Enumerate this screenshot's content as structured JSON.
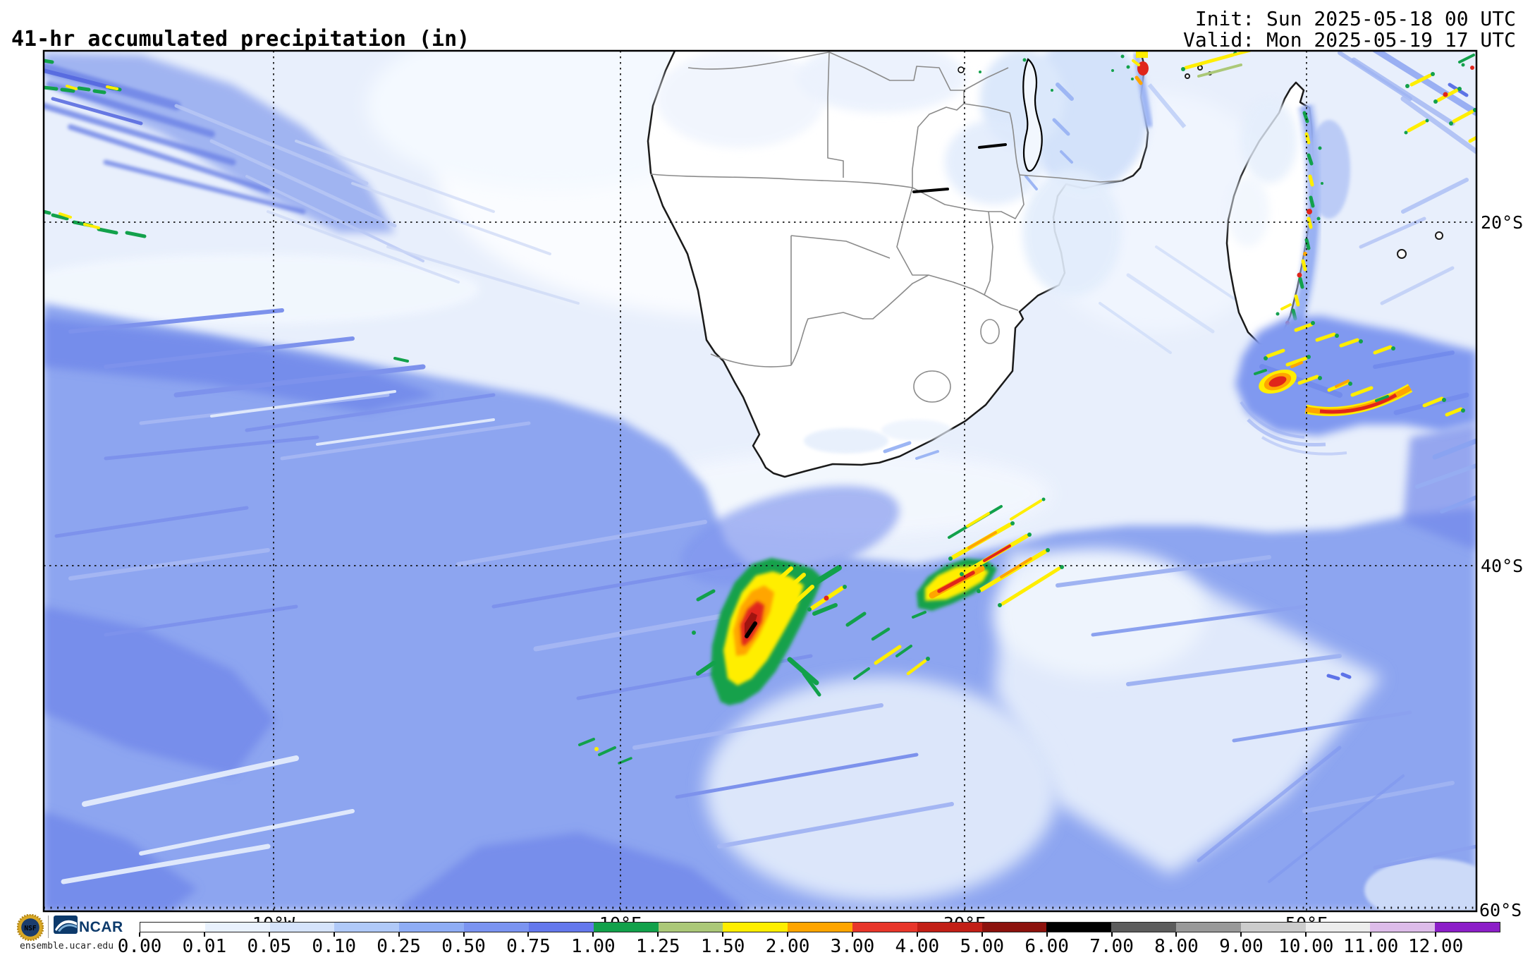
{
  "header": {
    "title": "41-hr accumulated precipitation (in)",
    "init": "Init: Sun 2025-05-18 00 UTC",
    "valid": "Valid: Mon 2025-05-19 17 UTC"
  },
  "map": {
    "axes": {
      "lat_labels": [
        "20°S",
        "40°S",
        "60°S"
      ],
      "lon_labels": [
        "10°W",
        "10°E",
        "30°E",
        "50°E"
      ]
    }
  },
  "colorbar": {
    "tick_labels": [
      "0.00",
      "0.01",
      "0.05",
      "0.10",
      "0.25",
      "0.50",
      "0.75",
      "1.00",
      "1.25",
      "1.50",
      "2.00",
      "3.00",
      "4.00",
      "5.00",
      "6.00",
      "7.00",
      "8.00",
      "9.00",
      "10.00",
      "11.00",
      "12.00"
    ],
    "segment_colors": [
      "#ffffff",
      "#e9f1fd",
      "#d5e3fb",
      "#b0c9f8",
      "#8fadf5",
      "#7b94f1",
      "#6478ec",
      "#12a14b",
      "#abc878",
      "#ffee00",
      "#ffa500",
      "#e8362a",
      "#c21f16",
      "#8c120d",
      "#000000",
      "#5c5c5c",
      "#999999",
      "#cccccc",
      "#ededed",
      "#ddbce9",
      "#8c1ec8"
    ]
  },
  "footer": {
    "nsf_label": "NSF",
    "ncar_label": "NCAR",
    "site": "ensemble.ucar.edu"
  },
  "chart_data": {
    "type": "heatmap",
    "title": "41-hr accumulated precipitation (in)",
    "units": "inches",
    "init_time": "Sun 2025-05-18 00 UTC",
    "valid_time": "Mon 2025-05-19 17 UTC",
    "region": {
      "area": "Southern Africa, South Atlantic, Southwest Indian Ocean and Madagascar",
      "lon_range_deg_east": [
        -23,
        59.5
      ],
      "lat_range_deg_north": [
        -60,
        -9
      ]
    },
    "grid_lines": {
      "latitude": [
        "20°S",
        "40°S",
        "60°S"
      ],
      "longitude": [
        "10°W",
        "10°E",
        "30°E",
        "50°E"
      ]
    },
    "scale_bin_edges_in": [
      0.0,
      0.01,
      0.05,
      0.1,
      0.25,
      0.5,
      0.75,
      1.0,
      1.25,
      1.5,
      2.0,
      3.0,
      4.0,
      5.0,
      6.0,
      7.0,
      8.0,
      9.0,
      10.0,
      11.0,
      12.0
    ],
    "features": [
      "Intense frontal storm cluster near 42°S 17°E with core > 6.00 in (black core, red/orange/yellow/green shading)",
      "Second band of convective streaks 40°S-44°S between 24°E and 33°E with reds > 3.00 in",
      "Storm east-southeast of Madagascar near 29°S 45-55°E with orange/red streaks 2.00-5.00 in",
      "Rain band with embedded 1.5-4 in cells along east coast of Madagascar",
      "Streaky light-moderate precipitation band across far South Atlantic near 10-12°S and broad 0.25-1.00 in field south of 35°S",
      "Mostly dry (< 0.01 in) over interior southern Africa"
    ],
    "legend_position": "bottom",
    "source": "ensemble.ucar.edu"
  }
}
